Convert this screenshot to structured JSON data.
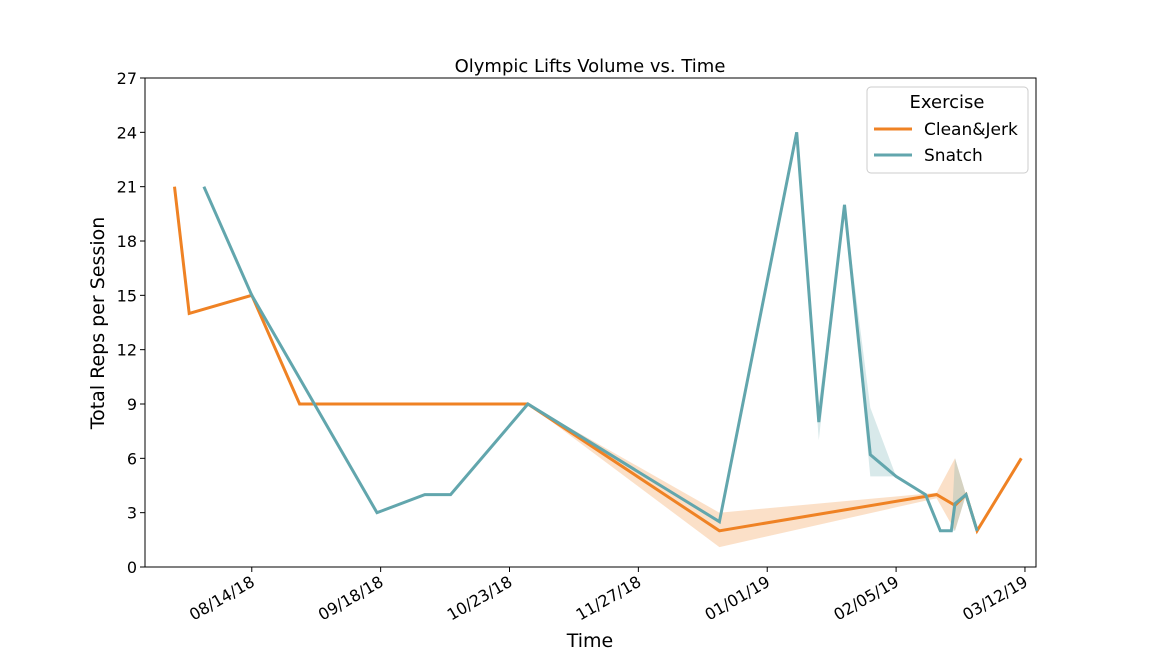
{
  "chart_data": {
    "type": "line",
    "title": "Olympic Lifts Volume vs. Time",
    "xlabel": "Time",
    "ylabel": "Total Reps per Session",
    "xlim": [
      "07/16/18",
      "03/15/19"
    ],
    "ylim": [
      0,
      27
    ],
    "x_ticks": [
      "08/14/18",
      "09/18/18",
      "10/23/18",
      "11/27/18",
      "01/01/19",
      "02/05/19",
      "03/12/19"
    ],
    "y_ticks": [
      0,
      3,
      6,
      9,
      12,
      15,
      18,
      21,
      24,
      27
    ],
    "grid": false,
    "legend": {
      "title": "Exercise",
      "placement": "top-right"
    },
    "series": [
      {
        "name": "Clean&Jerk",
        "color": "#ef8224",
        "points": [
          {
            "x": "07/24/18",
            "y": 21
          },
          {
            "x": "07/28/18",
            "y": 14
          },
          {
            "x": "08/14/18",
            "y": 15
          },
          {
            "x": "08/27/18",
            "y": 9
          },
          {
            "x": "10/28/18",
            "y": 9
          },
          {
            "x": "12/19/18",
            "y": 2,
            "lo": 1.1,
            "hi": 3
          },
          {
            "x": "02/16/19",
            "y": 4,
            "lo": 3.8,
            "hi": 4.1
          },
          {
            "x": "02/21/19",
            "y": 3.4,
            "lo": 2,
            "hi": 6
          },
          {
            "x": "02/24/19",
            "y": 4
          },
          {
            "x": "02/27/19",
            "y": 2
          },
          {
            "x": "03/11/19",
            "y": 6
          }
        ]
      },
      {
        "name": "Snatch",
        "color": "#62a6ad",
        "points": [
          {
            "x": "08/01/18",
            "y": 21
          },
          {
            "x": "08/14/18",
            "y": 15
          },
          {
            "x": "09/17/18",
            "y": 3
          },
          {
            "x": "09/30/18",
            "y": 4
          },
          {
            "x": "10/07/18",
            "y": 4
          },
          {
            "x": "10/28/18",
            "y": 9
          },
          {
            "x": "12/19/18",
            "y": 2.5
          },
          {
            "x": "01/09/19",
            "y": 24
          },
          {
            "x": "01/15/19",
            "y": 8,
            "lo": 7,
            "hi": 9
          },
          {
            "x": "01/22/19",
            "y": 20
          },
          {
            "x": "01/29/19",
            "y": 6.2,
            "lo": 5,
            "hi": 8.8
          },
          {
            "x": "02/05/19",
            "y": 5,
            "lo": 5,
            "hi": 5
          },
          {
            "x": "02/13/19",
            "y": 4
          },
          {
            "x": "02/17/19",
            "y": 2
          },
          {
            "x": "02/20/19",
            "y": 2
          },
          {
            "x": "02/21/19",
            "y": 3.5,
            "lo": 2,
            "hi": 6
          },
          {
            "x": "02/24/19",
            "y": 4
          },
          {
            "x": "02/27/19",
            "y": 2
          }
        ]
      }
    ]
  }
}
